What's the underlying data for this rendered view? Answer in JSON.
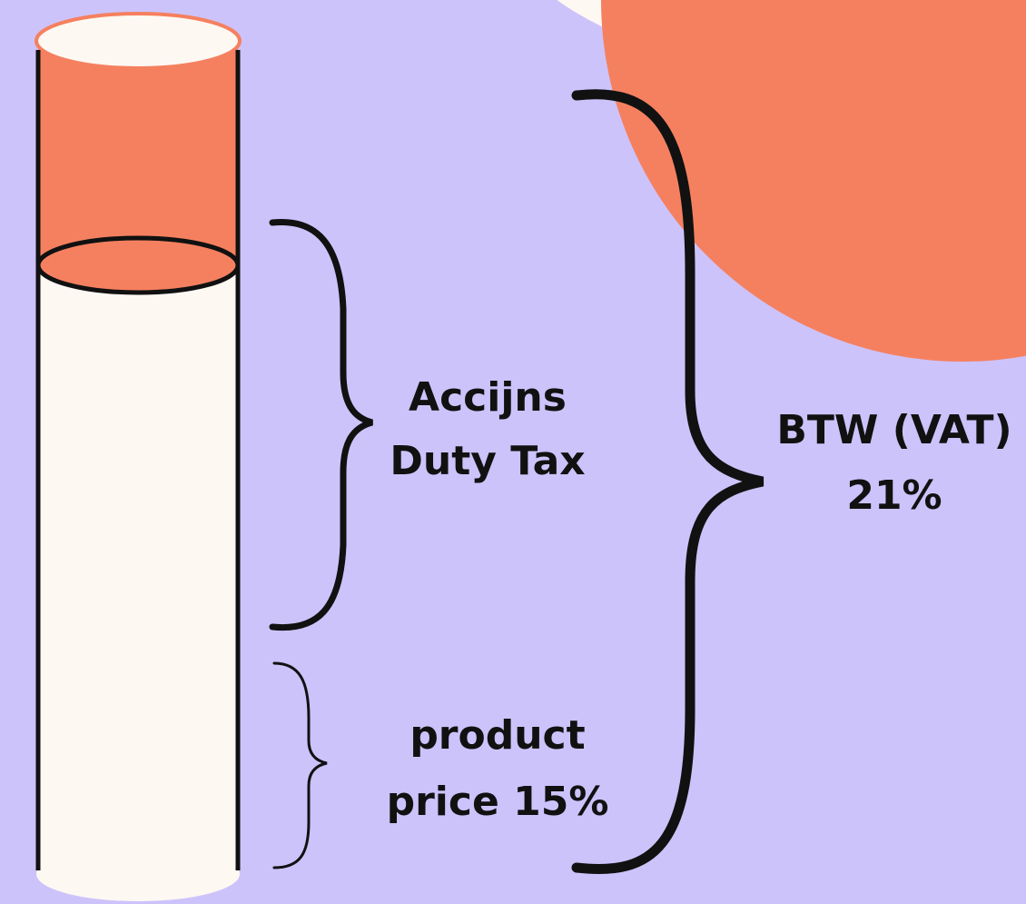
{
  "labels": {
    "duty_tax": {
      "lines": [
        "Accijns",
        "Duty Tax"
      ]
    },
    "vat": {
      "lines": [
        "BTW (VAT)",
        "21%"
      ]
    },
    "product_price": {
      "lines": [
        "product",
        "price 15%"
      ]
    }
  }
}
